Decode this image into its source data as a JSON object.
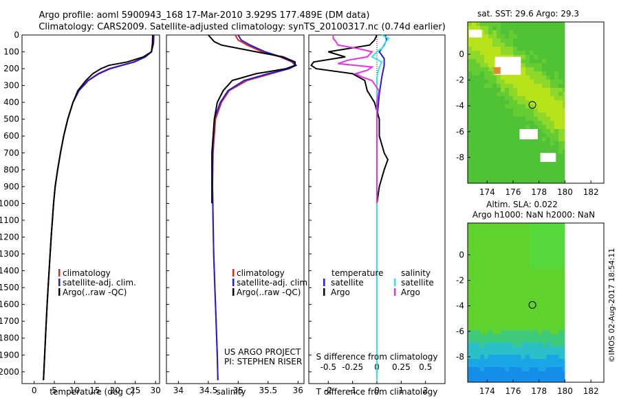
{
  "title_line1": "Argo profile: aoml 5900943_168 17-Mar-2010 3.929S 177.489E (DM data)",
  "title_line2": "Climatology: CARS2009. Satellite-adjusted climatology: synTS_20100317.nc (0.74d earlier)",
  "sst_title": "sat. SST: 29.6 Argo: 29.3",
  "sla_title1": "Altim. SLA: 0.022",
  "sla_title2": "Argo h1000: NaN h2000: NaN",
  "credit": "©IMOS 02-Aug-2017 18:54:11",
  "project_line1": "US ARGO PROJECT",
  "project_line2": "PI: STEPHEN RISER",
  "colors": {
    "clim": "#e8231f",
    "sat": "#1d1ddc",
    "argo": "#000000",
    "sat_s": "#2ee6ee",
    "argo_s": "#ee2eee"
  },
  "chart_data": [
    {
      "type": "line",
      "name": "temperature",
      "xlabel": "temperature (deg C)",
      "xlim": [
        -3,
        31
      ],
      "ylim": [
        0,
        2070
      ],
      "xticks": [
        "0",
        "5",
        "10",
        "15",
        "20",
        "25",
        "30"
      ],
      "yticks": [
        "0",
        "100",
        "200",
        "300",
        "400",
        "500",
        "600",
        "700",
        "800",
        "900",
        "1000",
        "1100",
        "1200",
        "1300",
        "1400",
        "1500",
        "1600",
        "1700",
        "1800",
        "1900",
        "2000"
      ],
      "legend": [
        "climatology",
        "satellite-adj. clim.",
        "Argo(..raw -QC)"
      ],
      "series": [
        {
          "name": "climatology",
          "depth": [
            0,
            50,
            100,
            130,
            160,
            180,
            200,
            230,
            270,
            330,
            400,
            500,
            600,
            700,
            800,
            900,
            1000,
            1200,
            1400,
            1600,
            1800,
            2000,
            2050
          ],
          "values": [
            29.3,
            29.2,
            29.0,
            27.5,
            24.5,
            21.5,
            18.5,
            15.8,
            13.3,
            11.0,
            9.6,
            8.3,
            7.3,
            6.5,
            5.8,
            5.2,
            4.8,
            4.2,
            3.7,
            3.2,
            2.8,
            2.4,
            2.3
          ]
        },
        {
          "name": "satellite-adj. clim.",
          "depth": [
            0,
            50,
            100,
            130,
            160,
            180,
            200,
            230,
            270,
            330,
            400,
            500,
            600,
            700,
            800,
            900,
            1000,
            1200,
            1400,
            1600,
            1800,
            2000,
            2050
          ],
          "values": [
            29.6,
            29.5,
            29.0,
            27.5,
            24.8,
            21.8,
            18.8,
            16.0,
            13.4,
            11.1,
            9.6,
            8.3,
            7.3,
            6.5,
            5.8,
            5.2,
            4.8,
            4.2,
            3.7,
            3.2,
            2.8,
            2.4,
            2.3
          ]
        },
        {
          "name": "Argo(..raw -QC)",
          "depth": [
            0,
            50,
            100,
            130,
            160,
            180,
            200,
            230,
            270,
            330,
            400,
            500,
            600,
            700,
            800,
            900,
            1000,
            1200,
            1400,
            1600,
            1800,
            2000,
            2050
          ],
          "values": [
            29.3,
            29.3,
            29.0,
            27.0,
            23.0,
            18.5,
            16.5,
            14.5,
            12.8,
            10.8,
            9.6,
            8.3,
            7.3,
            6.5,
            5.8,
            5.2,
            4.8,
            4.2,
            3.7,
            3.2,
            2.8,
            2.4,
            2.3
          ]
        }
      ]
    },
    {
      "type": "line",
      "name": "salinity",
      "xlabel": "salinity",
      "xlim": [
        33.8,
        36.1
      ],
      "ylim": [
        0,
        2070
      ],
      "xticks": [
        "34",
        "34.5",
        "35",
        "35.5",
        "36"
      ],
      "legend": [
        "climatology",
        "satellite-adj. clim.",
        "Argo(..raw -QC)"
      ],
      "series": [
        {
          "name": "climatology",
          "depth": [
            0,
            30,
            60,
            100,
            130,
            160,
            180,
            200,
            230,
            270,
            330,
            400,
            500,
            700,
            900,
            1100,
            1300,
            1500,
            1700,
            1900,
            2050
          ],
          "values": [
            34.95,
            35.0,
            35.15,
            35.4,
            35.7,
            35.9,
            35.95,
            35.85,
            35.55,
            35.15,
            34.85,
            34.72,
            34.62,
            34.58,
            34.57,
            34.58,
            34.59,
            34.61,
            34.63,
            34.65,
            34.66
          ]
        },
        {
          "name": "satellite-adj. clim.",
          "depth": [
            0,
            30,
            60,
            100,
            130,
            160,
            180,
            200,
            230,
            270,
            330,
            400,
            500,
            700,
            900,
            1100,
            1300,
            1500,
            1700,
            1900,
            2050
          ],
          "values": [
            35.0,
            35.05,
            35.2,
            35.45,
            35.72,
            35.92,
            35.97,
            35.85,
            35.5,
            35.1,
            34.83,
            34.7,
            34.6,
            34.57,
            34.57,
            34.58,
            34.59,
            34.61,
            34.63,
            34.65,
            34.66
          ]
        },
        {
          "name": "Argo(..raw -QC)",
          "depth": [
            0,
            20,
            40,
            60,
            100,
            130,
            160,
            180,
            200,
            230,
            270,
            330,
            400,
            500,
            700,
            900,
            1000
          ],
          "values": [
            34.5,
            34.55,
            34.6,
            34.72,
            35.3,
            35.75,
            35.95,
            35.95,
            35.8,
            35.3,
            34.9,
            34.75,
            34.65,
            34.6,
            34.56,
            34.56,
            34.56
          ]
        }
      ]
    },
    {
      "type": "line",
      "name": "difference",
      "xlabel": "T difference from climatology",
      "xlabel2": "S difference from climatology",
      "xlim": [
        -2.8,
        2.8
      ],
      "ylim": [
        0,
        2070
      ],
      "xticks": [
        "-2",
        "-1",
        "0",
        "1",
        "2"
      ],
      "xticks_top": [
        "-0.5",
        "-0.25",
        "0",
        "0.25",
        "0.5"
      ],
      "legend": [
        [
          "temperature",
          "salinity"
        ],
        [
          "satellite",
          "satellite"
        ],
        [
          "Argo",
          "Argo"
        ]
      ],
      "series": [
        {
          "name": "T satellite",
          "depth": [
            0,
            30,
            60,
            100,
            140,
            180,
            250,
            350,
            500,
            1000,
            2050
          ],
          "values": [
            0.35,
            0.4,
            0.3,
            0.1,
            0.3,
            0.3,
            0.2,
            0.1,
            0.0,
            0.0,
            0.0
          ]
        },
        {
          "name": "T Argo",
          "depth": [
            0,
            30,
            60,
            100,
            130,
            160,
            180,
            200,
            230,
            270,
            330,
            400,
            450,
            500,
            600,
            700,
            740,
            800,
            900,
            1000
          ],
          "values": [
            0.0,
            -0.1,
            -0.3,
            -2.0,
            -1.3,
            -2.6,
            -2.7,
            -2.5,
            -1.0,
            -0.5,
            -0.4,
            -0.1,
            0.0,
            0.1,
            0.1,
            0.3,
            0.45,
            0.3,
            0.1,
            0.0
          ]
        },
        {
          "name": "S satellite",
          "depth": [
            0,
            20,
            50,
            80,
            100,
            130,
            160,
            200,
            250,
            300,
            400,
            600,
            1000,
            2050
          ],
          "values": [
            0.05,
            0.12,
            0.08,
            0.05,
            0.0,
            -0.05,
            0.05,
            0.02,
            0.0,
            0.0,
            0.0,
            0.0,
            0.0,
            0.0
          ]
        },
        {
          "name": "S Argo",
          "depth": [
            0,
            20,
            40,
            60,
            80,
            100,
            130,
            150,
            170,
            190,
            210,
            230,
            250,
            270,
            330,
            400,
            500,
            700,
            900,
            1000
          ],
          "values": [
            -0.45,
            -0.45,
            -0.42,
            -0.4,
            -0.2,
            -0.05,
            -0.1,
            -0.3,
            -0.4,
            -0.05,
            -0.1,
            -0.22,
            -0.15,
            -0.05,
            0.02,
            0.0,
            0.0,
            0.0,
            0.0,
            0.0
          ]
        }
      ]
    },
    {
      "type": "heatmap",
      "name": "sst-map",
      "xticks": [
        "174",
        "176",
        "178",
        "180",
        "182"
      ],
      "yticks": [
        "0",
        "-2",
        "-4",
        "-6",
        "-8"
      ],
      "xlim": [
        172.5,
        183
      ],
      "ylim": [
        -10,
        2.5
      ],
      "argo_position": [
        177.489,
        -3.929
      ]
    },
    {
      "type": "heatmap",
      "name": "sla-map",
      "xticks": [
        "174",
        "176",
        "178",
        "180",
        "182"
      ],
      "yticks": [
        "0",
        "-2",
        "-4",
        "-6",
        "-8"
      ],
      "xlim": [
        172.5,
        183
      ],
      "ylim": [
        -10,
        2.5
      ],
      "argo_position": [
        177.489,
        -3.929
      ]
    }
  ]
}
